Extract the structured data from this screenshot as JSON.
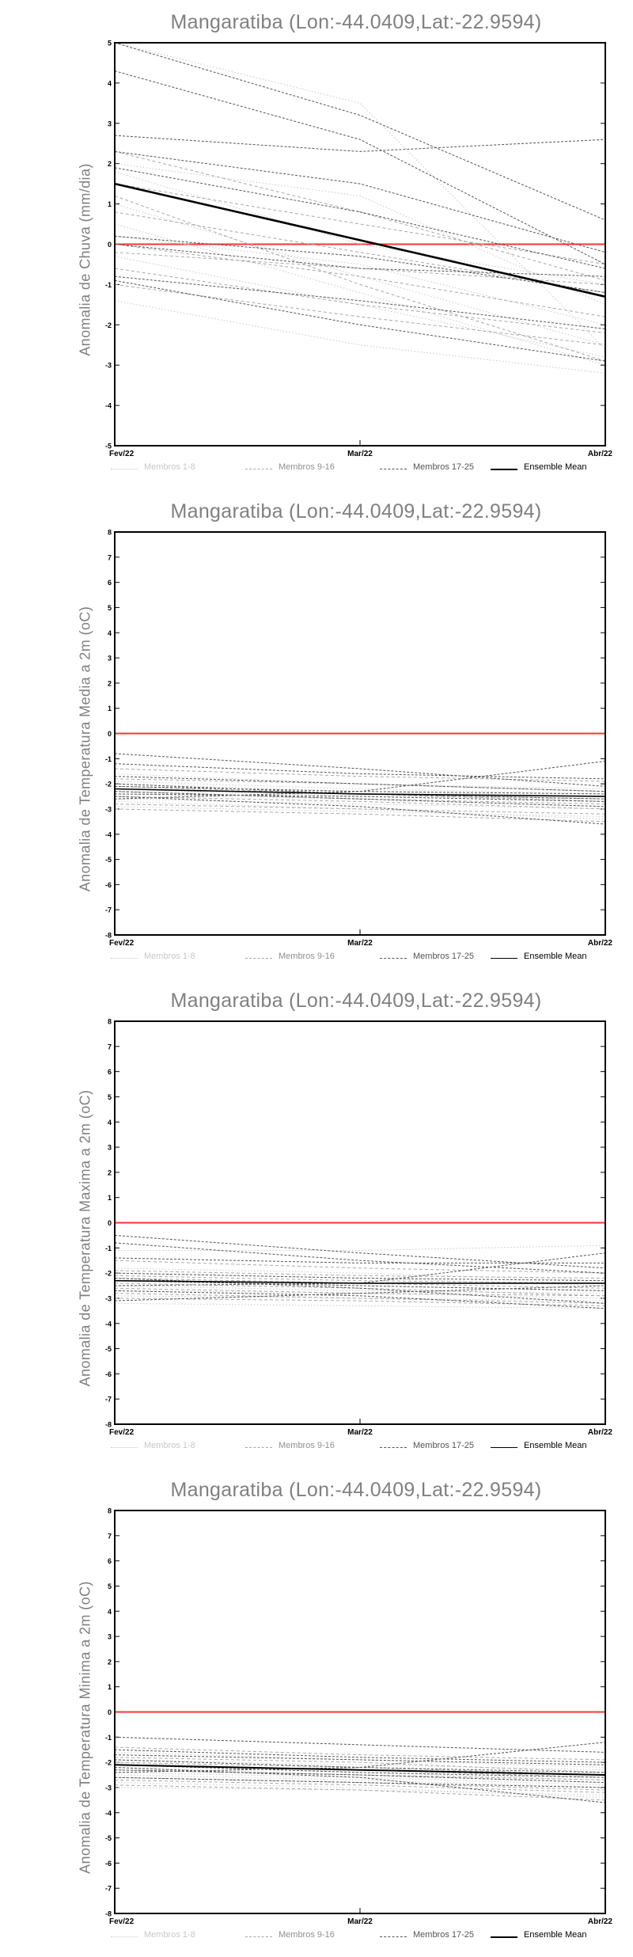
{
  "chart_data": [
    {
      "type": "line",
      "title": "Mangaratiba (Lon:-44.0409,Lat:-22.9594)",
      "ylabel": "Anomalia de Chuva (mm/dia)",
      "x": [
        "Fev/22",
        "Mar/22",
        "Abr/22"
      ],
      "ylim": [
        -5,
        5
      ],
      "yticks": [
        -5,
        -4,
        -3,
        -2,
        -1,
        0,
        1,
        2,
        3,
        4,
        5
      ],
      "zero_line_color": "#ff3333",
      "legend": [
        "Membros 1-8",
        "Membros 9-16",
        "Membros 17-25",
        "Ensemble Mean"
      ],
      "series": [
        {
          "group": 1,
          "values": [
            1.0,
            -0.8,
            -2.5
          ]
        },
        {
          "group": 1,
          "values": [
            0.5,
            -1.2,
            -3.0
          ]
        },
        {
          "group": 1,
          "values": [
            -0.3,
            -1.5,
            -2.8
          ]
        },
        {
          "group": 1,
          "values": [
            2.0,
            1.2,
            -1.5
          ]
        },
        {
          "group": 1,
          "values": [
            -1.4,
            -2.5,
            -3.2
          ]
        },
        {
          "group": 1,
          "values": [
            1.8,
            0.0,
            -1.0
          ]
        },
        {
          "group": 1,
          "values": [
            0.2,
            -0.5,
            -2.0
          ]
        },
        {
          "group": 1,
          "values": [
            5.0,
            3.5,
            -2.6
          ]
        },
        {
          "group": 2,
          "values": [
            1.5,
            0.5,
            -0.5
          ]
        },
        {
          "group": 2,
          "values": [
            0.0,
            -0.8,
            -1.8
          ]
        },
        {
          "group": 2,
          "values": [
            -0.6,
            -1.5,
            -2.2
          ]
        },
        {
          "group": 2,
          "values": [
            2.3,
            0.8,
            -0.9
          ]
        },
        {
          "group": 2,
          "values": [
            -1.0,
            -1.8,
            -2.5
          ]
        },
        {
          "group": 2,
          "values": [
            0.8,
            -0.2,
            -1.2
          ]
        },
        {
          "group": 2,
          "values": [
            1.2,
            -1.0,
            -2.9
          ]
        },
        {
          "group": 2,
          "values": [
            -0.2,
            -0.6,
            -1.0
          ]
        },
        {
          "group": 3,
          "values": [
            4.3,
            2.6,
            -0.5
          ]
        },
        {
          "group": 3,
          "values": [
            2.7,
            2.3,
            2.6
          ]
        },
        {
          "group": 3,
          "values": [
            2.3,
            1.5,
            -0.2
          ]
        },
        {
          "group": 3,
          "values": [
            5.0,
            3.2,
            0.6
          ]
        },
        {
          "group": 3,
          "values": [
            1.9,
            0.8,
            -0.6
          ]
        },
        {
          "group": 3,
          "values": [
            0.0,
            -0.6,
            -0.8
          ]
        },
        {
          "group": 3,
          "values": [
            -0.9,
            -2.0,
            -2.9
          ]
        },
        {
          "group": 3,
          "values": [
            0.2,
            -0.3,
            -1.2
          ]
        },
        {
          "group": 3,
          "values": [
            -0.8,
            -1.4,
            -2.1
          ]
        },
        {
          "name": "Ensemble Mean",
          "group": 4,
          "values": [
            1.5,
            0.1,
            -1.3
          ]
        }
      ]
    },
    {
      "type": "line",
      "title": "Mangaratiba (Lon:-44.0409,Lat:-22.9594)",
      "ylabel": "Anomalia de Temperatura Media a 2m (oC)",
      "x": [
        "Fev/22",
        "Mar/22",
        "Abr/22"
      ],
      "ylim": [
        -8,
        8
      ],
      "yticks": [
        -8,
        -7,
        -6,
        -5,
        -4,
        -3,
        -2,
        -1,
        0,
        1,
        2,
        3,
        4,
        5,
        6,
        7,
        8
      ],
      "zero_line_color": "#ff3333",
      "legend": [
        "Membros 1-8",
        "Membros 9-16",
        "Membros 17-25",
        "Ensemble Mean"
      ],
      "series": [
        {
          "group": 1,
          "values": [
            -2.9,
            -3.1,
            -3.3
          ]
        },
        {
          "group": 1,
          "values": [
            -2.2,
            -2.5,
            -2.6
          ]
        },
        {
          "group": 1,
          "values": [
            -2.6,
            -2.8,
            -3.0
          ]
        },
        {
          "group": 1,
          "values": [
            -1.9,
            -2.2,
            -2.4
          ]
        },
        {
          "group": 1,
          "values": [
            -2.4,
            -2.6,
            -2.9
          ]
        },
        {
          "group": 1,
          "values": [
            -2.0,
            -2.3,
            -2.5
          ]
        },
        {
          "group": 1,
          "values": [
            -2.7,
            -3.0,
            -3.4
          ]
        },
        {
          "group": 1,
          "values": [
            -1.6,
            -2.0,
            -2.2
          ]
        },
        {
          "group": 2,
          "values": [
            -2.3,
            -2.6,
            -2.8
          ]
        },
        {
          "group": 2,
          "values": [
            -2.8,
            -3.0,
            -3.2
          ]
        },
        {
          "group": 2,
          "values": [
            -1.4,
            -1.7,
            -1.9
          ]
        },
        {
          "group": 2,
          "values": [
            -2.1,
            -2.4,
            -2.7
          ]
        },
        {
          "group": 2,
          "values": [
            -2.5,
            -2.7,
            -3.0
          ]
        },
        {
          "group": 2,
          "values": [
            -1.8,
            -2.0,
            -2.3
          ]
        },
        {
          "group": 2,
          "values": [
            -2.2,
            -2.4,
            -2.6
          ]
        },
        {
          "group": 2,
          "values": [
            -3.0,
            -3.2,
            -3.5
          ]
        },
        {
          "group": 3,
          "values": [
            -0.8,
            -1.4,
            -2.1
          ]
        },
        {
          "group": 3,
          "values": [
            -2.6,
            -2.3,
            -1.1
          ]
        },
        {
          "group": 3,
          "values": [
            -1.2,
            -1.6,
            -1.8
          ]
        },
        {
          "group": 3,
          "values": [
            -2.0,
            -2.4,
            -2.6
          ]
        },
        {
          "group": 3,
          "values": [
            -2.3,
            -2.6,
            -2.9
          ]
        },
        {
          "group": 3,
          "values": [
            -1.7,
            -2.0,
            -2.3
          ]
        },
        {
          "group": 3,
          "values": [
            -2.5,
            -2.9,
            -3.6
          ]
        },
        {
          "group": 3,
          "values": [
            -2.1,
            -2.3,
            -2.4
          ]
        },
        {
          "group": 3,
          "values": [
            -2.4,
            -2.5,
            -2.7
          ]
        },
        {
          "name": "Ensemble Mean",
          "group": 4,
          "values": [
            -2.2,
            -2.4,
            -2.5
          ]
        }
      ]
    },
    {
      "type": "line",
      "title": "Mangaratiba (Lon:-44.0409,Lat:-22.9594)",
      "ylabel": "Anomalia de Temperatura Maxima a 2m (oC)",
      "x": [
        "Fev/22",
        "Mar/22",
        "Abr/22"
      ],
      "ylim": [
        -8,
        8
      ],
      "yticks": [
        -8,
        -7,
        -6,
        -5,
        -4,
        -3,
        -2,
        -1,
        0,
        1,
        2,
        3,
        4,
        5,
        6,
        7,
        8
      ],
      "zero_line_color": "#ff3333",
      "legend": [
        "Membros 1-8",
        "Membros 9-16",
        "Membros 17-25",
        "Ensemble Mean"
      ],
      "series": [
        {
          "group": 1,
          "values": [
            -1.1,
            -1.1,
            -0.9
          ]
        },
        {
          "group": 1,
          "values": [
            -2.3,
            -2.5,
            -2.7
          ]
        },
        {
          "group": 1,
          "values": [
            -2.9,
            -3.0,
            -3.1
          ]
        },
        {
          "group": 1,
          "values": [
            -1.8,
            -2.0,
            -2.3
          ]
        },
        {
          "group": 1,
          "values": [
            -2.5,
            -2.7,
            -2.8
          ]
        },
        {
          "group": 1,
          "values": [
            -3.2,
            -3.3,
            -3.4
          ]
        },
        {
          "group": 1,
          "values": [
            -2.0,
            -2.2,
            -2.5
          ]
        },
        {
          "group": 1,
          "values": [
            -2.7,
            -2.8,
            -3.0
          ]
        },
        {
          "group": 2,
          "values": [
            -1.5,
            -1.8,
            -2.0
          ]
        },
        {
          "group": 2,
          "values": [
            -2.4,
            -2.6,
            -2.9
          ]
        },
        {
          "group": 2,
          "values": [
            -3.0,
            -3.1,
            -3.3
          ]
        },
        {
          "group": 2,
          "values": [
            -2.1,
            -2.3,
            -2.4
          ]
        },
        {
          "group": 2,
          "values": [
            -2.6,
            -2.8,
            -2.9
          ]
        },
        {
          "group": 2,
          "values": [
            -1.9,
            -2.1,
            -2.2
          ]
        },
        {
          "group": 2,
          "values": [
            -2.8,
            -3.0,
            -3.2
          ]
        },
        {
          "group": 2,
          "values": [
            -2.2,
            -2.4,
            -2.6
          ]
        },
        {
          "group": 3,
          "values": [
            -0.5,
            -1.2,
            -1.8
          ]
        },
        {
          "group": 3,
          "values": [
            -0.8,
            -1.5,
            -2.0
          ]
        },
        {
          "group": 3,
          "values": [
            -2.5,
            -2.4,
            -1.2
          ]
        },
        {
          "group": 3,
          "values": [
            -3.1,
            -2.8,
            -2.5
          ]
        },
        {
          "group": 3,
          "values": [
            -2.2,
            -2.6,
            -3.2
          ]
        },
        {
          "group": 3,
          "values": [
            -1.4,
            -1.6,
            -1.6
          ]
        },
        {
          "group": 3,
          "values": [
            -2.0,
            -2.2,
            -2.3
          ]
        },
        {
          "group": 3,
          "values": [
            -2.7,
            -2.9,
            -3.4
          ]
        },
        {
          "group": 3,
          "values": [
            -2.3,
            -2.5,
            -2.7
          ]
        },
        {
          "name": "Ensemble Mean",
          "group": 4,
          "values": [
            -2.3,
            -2.4,
            -2.4
          ]
        }
      ]
    },
    {
      "type": "line",
      "title": "Mangaratiba (Lon:-44.0409,Lat:-22.9594)",
      "ylabel": "Anomalia de Temperatura Minima a 2m (oC)",
      "x": [
        "Fev/22",
        "Mar/22",
        "Abr/22"
      ],
      "ylim": [
        -8,
        8
      ],
      "yticks": [
        -8,
        -7,
        -6,
        -5,
        -4,
        -3,
        -2,
        -1,
        0,
        1,
        2,
        3,
        4,
        5,
        6,
        7,
        8
      ],
      "zero_line_color": "#ff3333",
      "legend": [
        "Membros 1-8",
        "Membros 9-16",
        "Membros 17-25",
        "Ensemble Mean"
      ],
      "series": [
        {
          "group": 1,
          "values": [
            -3.0,
            -3.1,
            -3.3
          ]
        },
        {
          "group": 1,
          "values": [
            -2.0,
            -2.4,
            -2.7
          ]
        },
        {
          "group": 1,
          "values": [
            -2.5,
            -2.7,
            -3.0
          ]
        },
        {
          "group": 1,
          "values": [
            -1.6,
            -1.9,
            -2.2
          ]
        },
        {
          "group": 1,
          "values": [
            -2.2,
            -2.5,
            -2.8
          ]
        },
        {
          "group": 1,
          "values": [
            -2.8,
            -3.0,
            -3.4
          ]
        },
        {
          "group": 1,
          "values": [
            -1.9,
            -2.1,
            -2.3
          ]
        },
        {
          "group": 1,
          "values": [
            -2.4,
            -2.6,
            -2.9
          ]
        },
        {
          "group": 2,
          "values": [
            -1.4,
            -1.7,
            -1.9
          ]
        },
        {
          "group": 2,
          "values": [
            -2.1,
            -2.3,
            -2.6
          ]
        },
        {
          "group": 2,
          "values": [
            -2.6,
            -2.8,
            -3.1
          ]
        },
        {
          "group": 2,
          "values": [
            -1.8,
            -2.0,
            -2.4
          ]
        },
        {
          "group": 2,
          "values": [
            -2.3,
            -2.5,
            -2.7
          ]
        },
        {
          "group": 2,
          "values": [
            -2.9,
            -3.1,
            -3.5
          ]
        },
        {
          "group": 2,
          "values": [
            -2.0,
            -2.2,
            -2.5
          ]
        },
        {
          "group": 2,
          "values": [
            -2.7,
            -2.9,
            -3.2
          ]
        },
        {
          "group": 3,
          "values": [
            -1.0,
            -1.3,
            -1.6
          ]
        },
        {
          "group": 3,
          "values": [
            -2.4,
            -2.2,
            -1.2
          ]
        },
        {
          "group": 3,
          "values": [
            -1.7,
            -1.9,
            -2.1
          ]
        },
        {
          "group": 3,
          "values": [
            -2.1,
            -2.4,
            -2.6
          ]
        },
        {
          "group": 3,
          "values": [
            -2.2,
            -2.6,
            -3.6
          ]
        },
        {
          "group": 3,
          "values": [
            -1.9,
            -2.2,
            -2.4
          ]
        },
        {
          "group": 3,
          "values": [
            -2.3,
            -2.5,
            -2.8
          ]
        },
        {
          "group": 3,
          "values": [
            -1.5,
            -1.8,
            -2.0
          ]
        },
        {
          "group": 3,
          "values": [
            -2.6,
            -2.8,
            -3.0
          ]
        },
        {
          "name": "Ensemble Mean",
          "group": 4,
          "values": [
            -2.1,
            -2.3,
            -2.5
          ]
        }
      ]
    }
  ]
}
